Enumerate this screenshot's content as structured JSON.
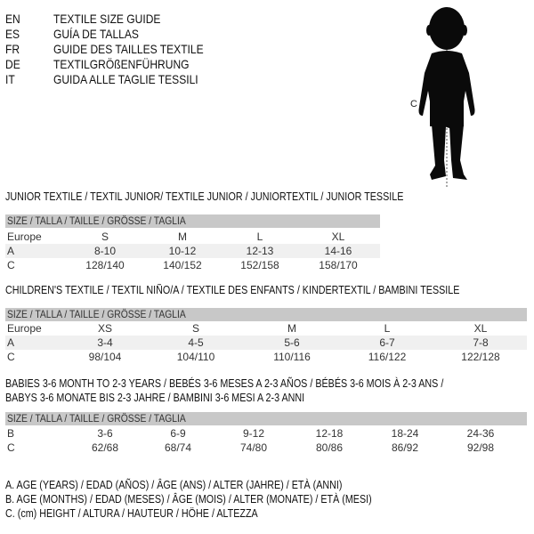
{
  "languages": [
    {
      "code": "EN",
      "text": "TEXTILE SIZE GUIDE"
    },
    {
      "code": "ES",
      "text": "GUÍA DE TALLAS"
    },
    {
      "code": "FR",
      "text": "GUIDE DES TAILLES TEXTILE"
    },
    {
      "code": "DE",
      "text": "TEXTILGRÖßENFÜHRUNG"
    },
    {
      "code": "IT",
      "text": "GUIDA ALLE TAGLIE TESSILI"
    }
  ],
  "figure": {
    "height_label": "C"
  },
  "junior": {
    "title": "JUNIOR TEXTILE / TEXTIL JUNIOR/ TEXTILE JUNIOR / JUNIORTEXTIL / JUNIOR TESSILE",
    "header": "SIZE / TALLA / TAILLE / GRÖSSE / TAGLIA",
    "rows": [
      {
        "label": "Europe",
        "values": [
          "S",
          "M",
          "L",
          "XL"
        ]
      },
      {
        "label": "A",
        "values": [
          "8-10",
          "10-12",
          "12-13",
          "14-16"
        ]
      },
      {
        "label": "C",
        "values": [
          "128/140",
          "140/152",
          "152/158",
          "158/170"
        ]
      }
    ]
  },
  "children": {
    "title": "CHILDREN'S TEXTILE / TEXTIL NIÑO/A / TEXTILE DES ENFANTS / KINDERTEXTIL / BAMBINI TESSILE",
    "header": "SIZE / TALLA / TAILLE / GRÖSSE / TAGLIA",
    "rows": [
      {
        "label": "Europe",
        "values": [
          "XS",
          "S",
          "M",
          "L",
          "XL"
        ]
      },
      {
        "label": "A",
        "values": [
          "3-4",
          "4-5",
          "5-6",
          "6-7",
          "7-8"
        ]
      },
      {
        "label": "C",
        "values": [
          "98/104",
          "104/110",
          "110/116",
          "116/122",
          "122/128"
        ]
      }
    ]
  },
  "babies": {
    "title_line1": "BABIES 3-6 MONTH TO 2-3 YEARS / BEBÉS 3-6 MESES A 2-3 AÑOS / BÉBÉS 3-6 MOIS À 2-3 ANS /",
    "title_line2": "BABYS 3-6 MONATE BIS 2-3 JAHRE / BAMBINI 3-6 MESI A 2-3 ANNI",
    "header": "SIZE / TALLA / TAILLE / GRÖSSE / TAGLIA",
    "rows": [
      {
        "label": "B",
        "values": [
          "3-6",
          "6-9",
          "9-12",
          "12-18",
          "18-24",
          "24-36"
        ]
      },
      {
        "label": "C",
        "values": [
          "62/68",
          "68/74",
          "74/80",
          "80/86",
          "86/92",
          "92/98"
        ]
      }
    ]
  },
  "legend": [
    "A. AGE (YEARS) / EDAD (AÑOS) / ÂGE (ANS) / ALTER (JAHRE) / ETÀ (ANNI)",
    "B. AGE (MONTHS) / EDAD (MESES) / ÂGE (MOIS) / ALTER (MONATE) / ETÀ (MESI)",
    "C. (cm) HEIGHT / ALTURA / HAUTEUR / HÖHE / ALTEZZA"
  ]
}
